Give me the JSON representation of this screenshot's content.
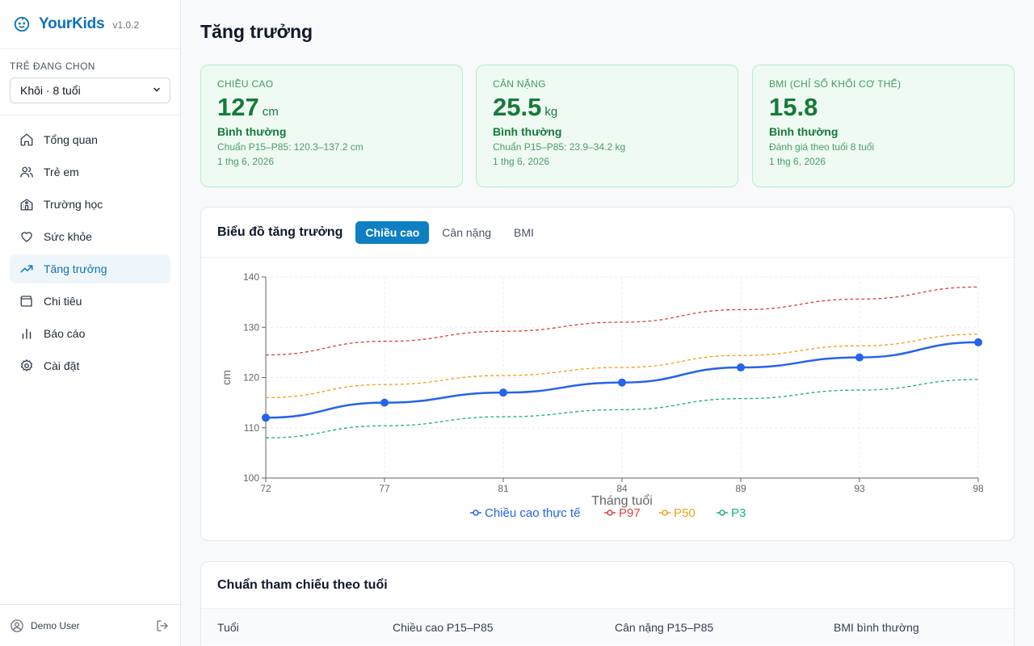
{
  "app": {
    "name": "YourKids",
    "version": "v1.0.2"
  },
  "child_selector": {
    "label": "TRẺ ĐANG CHỌN",
    "selected": "Khôi · 8 tuổi"
  },
  "nav": {
    "items": [
      {
        "label": "Tổng quan",
        "icon": "home-icon"
      },
      {
        "label": "Trẻ em",
        "icon": "users-icon"
      },
      {
        "label": "Trường học",
        "icon": "school-icon"
      },
      {
        "label": "Sức khỏe",
        "icon": "heart-icon"
      },
      {
        "label": "Tăng trưởng",
        "icon": "trending-up-icon"
      },
      {
        "label": "Chi tiêu",
        "icon": "wallet-icon"
      },
      {
        "label": "Báo cáo",
        "icon": "bar-chart-icon"
      },
      {
        "label": "Cài đặt",
        "icon": "gear-icon"
      }
    ],
    "active": "Tăng trưởng"
  },
  "user": {
    "name": "Demo User"
  },
  "page": {
    "title": "Tăng trưởng"
  },
  "stats": [
    {
      "label": "CHIỀU CAO",
      "value": "127",
      "unit": "cm",
      "status": "Bình thường",
      "note": "Chuẩn P15–P85: 120.3–137.2 cm",
      "date": "1 thg 6, 2026"
    },
    {
      "label": "CÂN NẶNG",
      "value": "25.5",
      "unit": "kg",
      "status": "Bình thường",
      "note": "Chuẩn P15–P85: 23.9–34.2 kg",
      "date": "1 thg 6, 2026"
    },
    {
      "label": "BMI (CHỈ SỐ KHỐI CƠ THỂ)",
      "value": "15.8",
      "unit": "",
      "status": "Bình thường",
      "note": "Đánh giá theo tuổi 8 tuổi",
      "date": "1 thg 6, 2026"
    }
  ],
  "chart_card": {
    "title": "Biểu đồ tăng trưởng",
    "tabs": [
      "Chiều cao",
      "Cân nặng",
      "BMI"
    ],
    "active_tab": "Chiều cao"
  },
  "chart_data": {
    "type": "line",
    "x": [
      72,
      77,
      81,
      84,
      89,
      93,
      98
    ],
    "xlabel": "Tháng tuổi",
    "ylabel": "cm",
    "ylim": [
      100,
      140
    ],
    "yticks": [
      100,
      110,
      120,
      130,
      140
    ],
    "grid": true,
    "legend_position": "bottom",
    "series": [
      {
        "name": "Chiều cao thực tế",
        "color": "#2563eb",
        "style": "solid",
        "markers": true,
        "values": [
          112,
          115,
          117,
          119,
          122,
          124,
          127
        ]
      },
      {
        "name": "P97",
        "color": "#e0413b",
        "style": "dashed",
        "markers": false,
        "values": [
          124.5,
          127.2,
          129.2,
          131,
          133.5,
          135.6,
          138
        ]
      },
      {
        "name": "P50",
        "color": "#f0a01a",
        "style": "dashed",
        "markers": false,
        "values": [
          116,
          118.6,
          120.4,
          122,
          124.4,
          126.3,
          128.6
        ]
      },
      {
        "name": "P3",
        "color": "#19b37b",
        "style": "dashed",
        "markers": false,
        "values": [
          108,
          110.4,
          112.2,
          113.6,
          115.8,
          117.5,
          119.6
        ]
      }
    ]
  },
  "reference": {
    "title": "Chuẩn tham chiếu theo tuổi",
    "columns": [
      "Tuổi",
      "Chiều cao P15–P85",
      "Cân nặng P15–P85",
      "BMI bình thường"
    ]
  }
}
